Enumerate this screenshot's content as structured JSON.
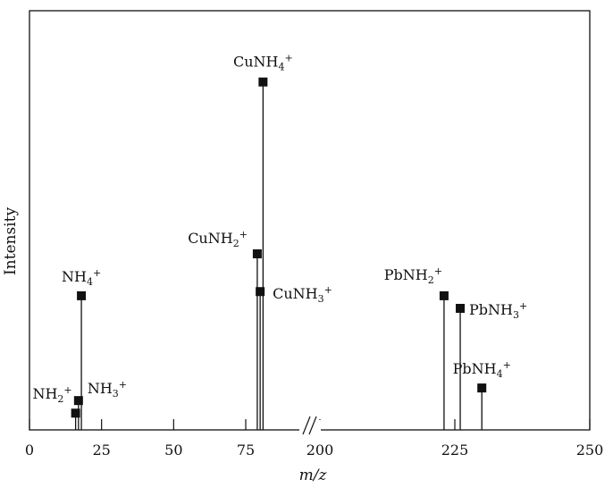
{
  "chart_data": {
    "type": "stem",
    "title": "",
    "xlabel": "m/z",
    "ylabel": "Intensity",
    "x_axis_break": true,
    "x_ticks_left": [
      "0",
      "25",
      "50",
      "75"
    ],
    "x_ticks_right": [
      "200",
      "225",
      "250"
    ],
    "xlim_left": [
      0,
      85
    ],
    "xlim_right": [
      195,
      250
    ],
    "ylim": [
      0,
      100
    ],
    "grid": false,
    "legend": "none",
    "marker_color": "#111111",
    "peaks": [
      {
        "base": "NH",
        "sub": "2",
        "sup": "+",
        "x": 16,
        "y": 4
      },
      {
        "base": "NH",
        "sub": "3",
        "sup": "+",
        "x": 17,
        "y": 7
      },
      {
        "base": "NH",
        "sub": "4",
        "sup": "+",
        "x": 18,
        "y": 32
      },
      {
        "base": "CuNH",
        "sub": "2",
        "sup": "+",
        "x": 79,
        "y": 42
      },
      {
        "base": "CuNH",
        "sub": "3",
        "sup": "+",
        "x": 80,
        "y": 33
      },
      {
        "base": "CuNH",
        "sub": "4",
        "sup": "+",
        "x": 81,
        "y": 83
      },
      {
        "base": "PbNH",
        "sub": "2",
        "sup": "+",
        "x": 223,
        "y": 32
      },
      {
        "base": "PbNH",
        "sub": "3",
        "sup": "+",
        "x": 226,
        "y": 29
      },
      {
        "base": "PbNH",
        "sub": "4",
        "sup": "+",
        "x": 230,
        "y": 10
      }
    ]
  }
}
